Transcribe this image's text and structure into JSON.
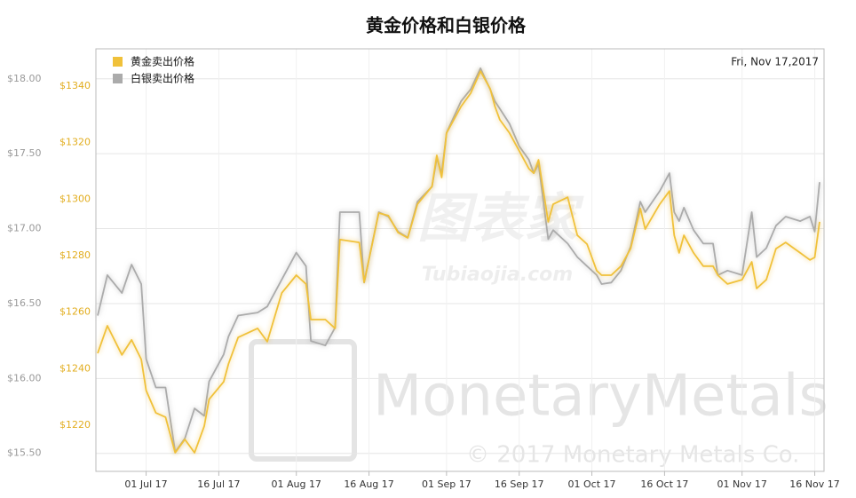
{
  "chart_data": {
    "type": "line",
    "title": "黄金价格和白银价格",
    "date_label": "Fri, Nov 17,2017",
    "watermarks": [
      "图表家",
      "Tubiaojia.com",
      "MonetaryMetals",
      "© 2017 Monetary Metals Co."
    ],
    "x": [
      "2017-06-21",
      "2017-06-23",
      "2017-06-26",
      "2017-06-28",
      "2017-06-30",
      "2017-07-01",
      "2017-07-03",
      "2017-07-05",
      "2017-07-07",
      "2017-07-09",
      "2017-07-11",
      "2017-07-13",
      "2017-07-14",
      "2017-07-17",
      "2017-07-18",
      "2017-07-20",
      "2017-07-24",
      "2017-07-26",
      "2017-07-29",
      "2017-08-01",
      "2017-08-03",
      "2017-08-04",
      "2017-08-07",
      "2017-08-09",
      "2017-08-10",
      "2017-08-14",
      "2017-08-15",
      "2017-08-18",
      "2017-08-20",
      "2017-08-22",
      "2017-08-24",
      "2017-08-26",
      "2017-08-29",
      "2017-08-30",
      "2017-08-31",
      "2017-09-01",
      "2017-09-04",
      "2017-09-06",
      "2017-09-08",
      "2017-09-10",
      "2017-09-11",
      "2017-09-12",
      "2017-09-14",
      "2017-09-16",
      "2017-09-18",
      "2017-09-19",
      "2017-09-20",
      "2017-09-22",
      "2017-09-23",
      "2017-09-26",
      "2017-09-28",
      "2017-09-30",
      "2017-10-02",
      "2017-10-03",
      "2017-10-05",
      "2017-10-07",
      "2017-10-09",
      "2017-10-11",
      "2017-10-12",
      "2017-10-15",
      "2017-10-17",
      "2017-10-18",
      "2017-10-19",
      "2017-10-20",
      "2017-10-22",
      "2017-10-24",
      "2017-10-26",
      "2017-10-27",
      "2017-10-29",
      "2017-11-01",
      "2017-11-03",
      "2017-11-04",
      "2017-11-06",
      "2017-11-08",
      "2017-11-10",
      "2017-11-13",
      "2017-11-15",
      "2017-11-16",
      "2017-11-17"
    ],
    "xlim": [
      "2017-06-21",
      "2017-11-17"
    ],
    "xticks": [
      {
        "value": "2017-07-01",
        "label": "01 Jul 17"
      },
      {
        "value": "2017-07-16",
        "label": "16 Jul 17"
      },
      {
        "value": "2017-08-01",
        "label": "01 Aug 17"
      },
      {
        "value": "2017-08-16",
        "label": "16 Aug 17"
      },
      {
        "value": "2017-09-01",
        "label": "01 Sep 17"
      },
      {
        "value": "2017-09-16",
        "label": "16 Sep 17"
      },
      {
        "value": "2017-10-01",
        "label": "01 Oct 17"
      },
      {
        "value": "2017-10-16",
        "label": "16 Oct 17"
      },
      {
        "value": "2017-11-01",
        "label": "01 Nov 17"
      },
      {
        "value": "2017-11-16",
        "label": "16 Nov 17"
      }
    ],
    "ylim": [
      15.38,
      18.2
    ],
    "yticks": [
      {
        "value": 15.5,
        "label": "$15.50"
      },
      {
        "value": 16,
        "label": "$16.00"
      },
      {
        "value": 16.5,
        "label": "$16.50"
      },
      {
        "value": 17,
        "label": "$17.00"
      },
      {
        "value": 17.5,
        "label": "$17.50"
      },
      {
        "value": 18,
        "label": "$18.00"
      }
    ],
    "y2lim": [
      1203.7,
      1353.2
    ],
    "y2ticks": [
      {
        "value": 1220,
        "label": "$1220"
      },
      {
        "value": 1240,
        "label": "$1240"
      },
      {
        "value": 1260,
        "label": "$1260"
      },
      {
        "value": 1280,
        "label": "$1280"
      },
      {
        "value": 1300,
        "label": "$1300"
      },
      {
        "value": 1320,
        "label": "$1320"
      },
      {
        "value": 1340,
        "label": "$1340"
      }
    ],
    "grid": true,
    "legend": "top-left",
    "series": [
      {
        "name": "黄金卖出价格",
        "color": "#f0c13a",
        "axis": "y2",
        "values": [
          1245.5,
          1255.2,
          1244.9,
          1250.2,
          1243.3,
          1232.3,
          1224.4,
          1222.9,
          1210.3,
          1215.0,
          1210.3,
          1219.7,
          1229.2,
          1235.4,
          1241.7,
          1251.1,
          1254.3,
          1249.6,
          1266.8,
          1273.1,
          1270.0,
          1257.4,
          1257.4,
          1254.3,
          1285.7,
          1284.7,
          1270.6,
          1295.1,
          1294.2,
          1288.2,
          1286.3,
          1298.2,
          1304.5,
          1315.5,
          1307.7,
          1323.4,
          1332.8,
          1337.5,
          1345.3,
          1339.1,
          1332.8,
          1328.1,
          1323.4,
          1317.1,
          1310.8,
          1309.2,
          1313.9,
          1292.0,
          1298.2,
          1300.7,
          1287.2,
          1284.1,
          1274.7,
          1273.1,
          1273.1,
          1276.3,
          1282.5,
          1296.7,
          1289.4,
          1298.2,
          1302.9,
          1287.2,
          1281.0,
          1287.2,
          1281.0,
          1276.3,
          1276.3,
          1273.1,
          1270.0,
          1271.5,
          1277.8,
          1268.4,
          1271.5,
          1282.5,
          1284.7,
          1281.0,
          1278.5,
          1279.4,
          1292.0
        ]
      },
      {
        "name": "白银卖出价格",
        "color": "#ababab",
        "values": [
          16.42,
          16.69,
          16.57,
          16.76,
          16.63,
          16.13,
          15.94,
          15.94,
          15.51,
          15.6,
          15.8,
          15.75,
          15.98,
          16.16,
          16.28,
          16.42,
          16.44,
          16.48,
          16.66,
          16.84,
          16.75,
          16.25,
          16.22,
          16.34,
          17.11,
          17.11,
          16.64,
          17.11,
          17.08,
          16.98,
          16.94,
          17.18,
          17.28,
          17.47,
          17.37,
          17.64,
          17.85,
          17.93,
          18.07,
          17.93,
          17.85,
          17.8,
          17.7,
          17.55,
          17.46,
          17.37,
          17.43,
          16.93,
          16.99,
          16.9,
          16.81,
          16.75,
          16.69,
          16.63,
          16.64,
          16.72,
          16.88,
          17.18,
          17.11,
          17.25,
          17.37,
          17.11,
          17.05,
          17.14,
          16.99,
          16.9,
          16.9,
          16.69,
          16.72,
          16.69,
          17.11,
          16.81,
          16.87,
          17.02,
          17.08,
          17.05,
          17.08,
          16.98,
          17.31
        ]
      }
    ]
  }
}
